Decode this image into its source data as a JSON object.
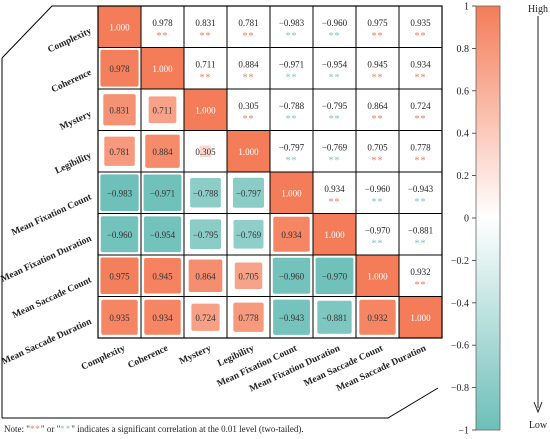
{
  "chart_data": {
    "type": "heatmap",
    "variables": [
      "Complexity",
      "Coherence",
      "Mystery",
      "Legibility",
      "Mean Fixation Count",
      "Mean Fixation Duration",
      "Mean Saccade Count",
      "Mean Saccade Duration"
    ],
    "matrix": [
      [
        1.0,
        0.978,
        0.831,
        0.781,
        -0.983,
        -0.96,
        0.975,
        0.935
      ],
      [
        0.978,
        1.0,
        0.711,
        0.884,
        -0.971,
        -0.954,
        0.945,
        0.934
      ],
      [
        0.831,
        0.711,
        1.0,
        0.305,
        -0.788,
        -0.795,
        0.864,
        0.724
      ],
      [
        0.781,
        0.884,
        0.305,
        1.0,
        -0.797,
        -0.769,
        0.705,
        0.778
      ],
      [
        -0.983,
        -0.971,
        -0.788,
        -0.797,
        1.0,
        0.934,
        -0.96,
        -0.943
      ],
      [
        -0.96,
        -0.954,
        -0.795,
        -0.769,
        0.934,
        1.0,
        -0.97,
        -0.881
      ],
      [
        0.975,
        0.945,
        0.864,
        0.705,
        -0.96,
        -0.97,
        1.0,
        0.932
      ],
      [
        0.935,
        0.934,
        0.724,
        0.778,
        -0.943,
        -0.881,
        0.932,
        1.0
      ]
    ],
    "value_labels": [
      [
        "1.000",
        "0.978",
        "0.831",
        "0.781",
        "−0.983",
        "−0.960",
        "0.975",
        "0.935"
      ],
      [
        "0.978",
        "1.000",
        "0.711",
        "0.884",
        "−0.971",
        "−0.954",
        "0.945",
        "0.934"
      ],
      [
        "0.831",
        "0.711",
        "1.000",
        "0.305",
        "−0.788",
        "−0.795",
        "0.864",
        "0.724"
      ],
      [
        "0.781",
        "0.884",
        "0.305",
        "1.000",
        "−0.797",
        "−0.769",
        "0.705",
        "0.778"
      ],
      [
        "−0.983",
        "−0.971",
        "−0.788",
        "−0.797",
        "1.000",
        "0.934",
        "−0.960",
        "−0.943"
      ],
      [
        "−0.960",
        "−0.954",
        "−0.795",
        "−0.769",
        "0.934",
        "1.000",
        "−0.970",
        "−0.881"
      ],
      [
        "0.975",
        "0.945",
        "0.864",
        "0.705",
        "−0.960",
        "−0.970",
        "1.000",
        "0.932"
      ],
      [
        "0.935",
        "0.934",
        "0.724",
        "0.778",
        "−0.943",
        "−0.881",
        "0.932",
        "1.000"
      ]
    ],
    "star_marker": "**",
    "significance_shown": "upper-triangle",
    "color_scale": {
      "range": [
        -1,
        1
      ],
      "positive_color": "#F47C58",
      "negative_color": "#6DBFB9",
      "neutral_color": "#FFFFFF",
      "ticks": [
        1,
        0.8,
        0.6,
        0.4,
        0.2,
        0,
        -0.2,
        -0.4,
        -0.6,
        -0.8,
        -1
      ],
      "tick_labels": [
        "1",
        "0.8",
        "0.6",
        "0.4",
        "0.2",
        "0",
        "−0.2",
        "−0.4",
        "−0.6",
        "−0.8",
        "−1"
      ],
      "high_label": "High",
      "low_label": "Low"
    },
    "lower_triangle_style": "squares sized by magnitude",
    "upper_triangle_style": "numbers with significance stars"
  },
  "note": {
    "prefix": "Note: \"",
    "red_stars": "**",
    "middle": "\" or \"",
    "cyan_stars": "**",
    "suffix": "\" indicates a significant correlation at the 0.01 level (two-tailed)."
  }
}
